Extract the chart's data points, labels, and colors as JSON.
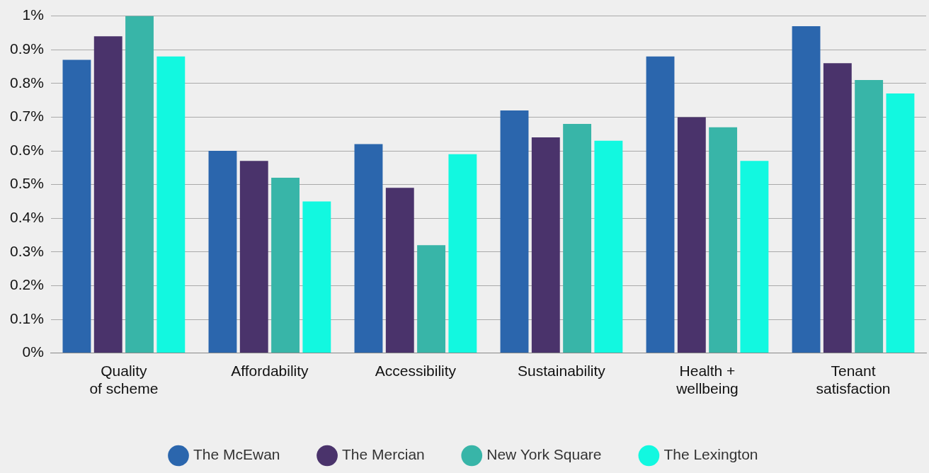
{
  "chart_data": {
    "type": "bar",
    "categories": [
      "Quality of scheme",
      "Affordability",
      "Accessibility",
      "Sustainability",
      "Health + wellbeing",
      "Tenant satisfaction"
    ],
    "series": [
      {
        "name": "The McEwan",
        "color": "#2b66ad",
        "values": [
          0.87,
          0.6,
          0.62,
          0.72,
          0.88,
          0.97
        ]
      },
      {
        "name": "The Mercian",
        "color": "#4a336b",
        "values": [
          0.94,
          0.57,
          0.49,
          0.64,
          0.7,
          0.86
        ]
      },
      {
        "name": "New York Square",
        "color": "#38b5a8",
        "values": [
          1.0,
          0.52,
          0.32,
          0.68,
          0.67,
          0.81
        ]
      },
      {
        "name": "The Lexington",
        "color": "#12f8e0",
        "values": [
          0.88,
          0.45,
          0.59,
          0.63,
          0.57,
          0.77
        ]
      }
    ],
    "ylim": [
      0,
      1
    ],
    "yticks": [
      {
        "value": 0,
        "label": "0%"
      },
      {
        "value": 0.1,
        "label": "0.1%"
      },
      {
        "value": 0.2,
        "label": "0.2%"
      },
      {
        "value": 0.3,
        "label": "0.3%"
      },
      {
        "value": 0.4,
        "label": "0.4%"
      },
      {
        "value": 0.5,
        "label": "0.5%"
      },
      {
        "value": 0.6,
        "label": "0.6%"
      },
      {
        "value": 0.7,
        "label": "0.7%"
      },
      {
        "value": 0.8,
        "label": "0.8%"
      },
      {
        "value": 0.9,
        "label": "0.9%"
      },
      {
        "value": 1,
        "label": "1%"
      }
    ],
    "grid": "y",
    "legend": "bottom"
  }
}
